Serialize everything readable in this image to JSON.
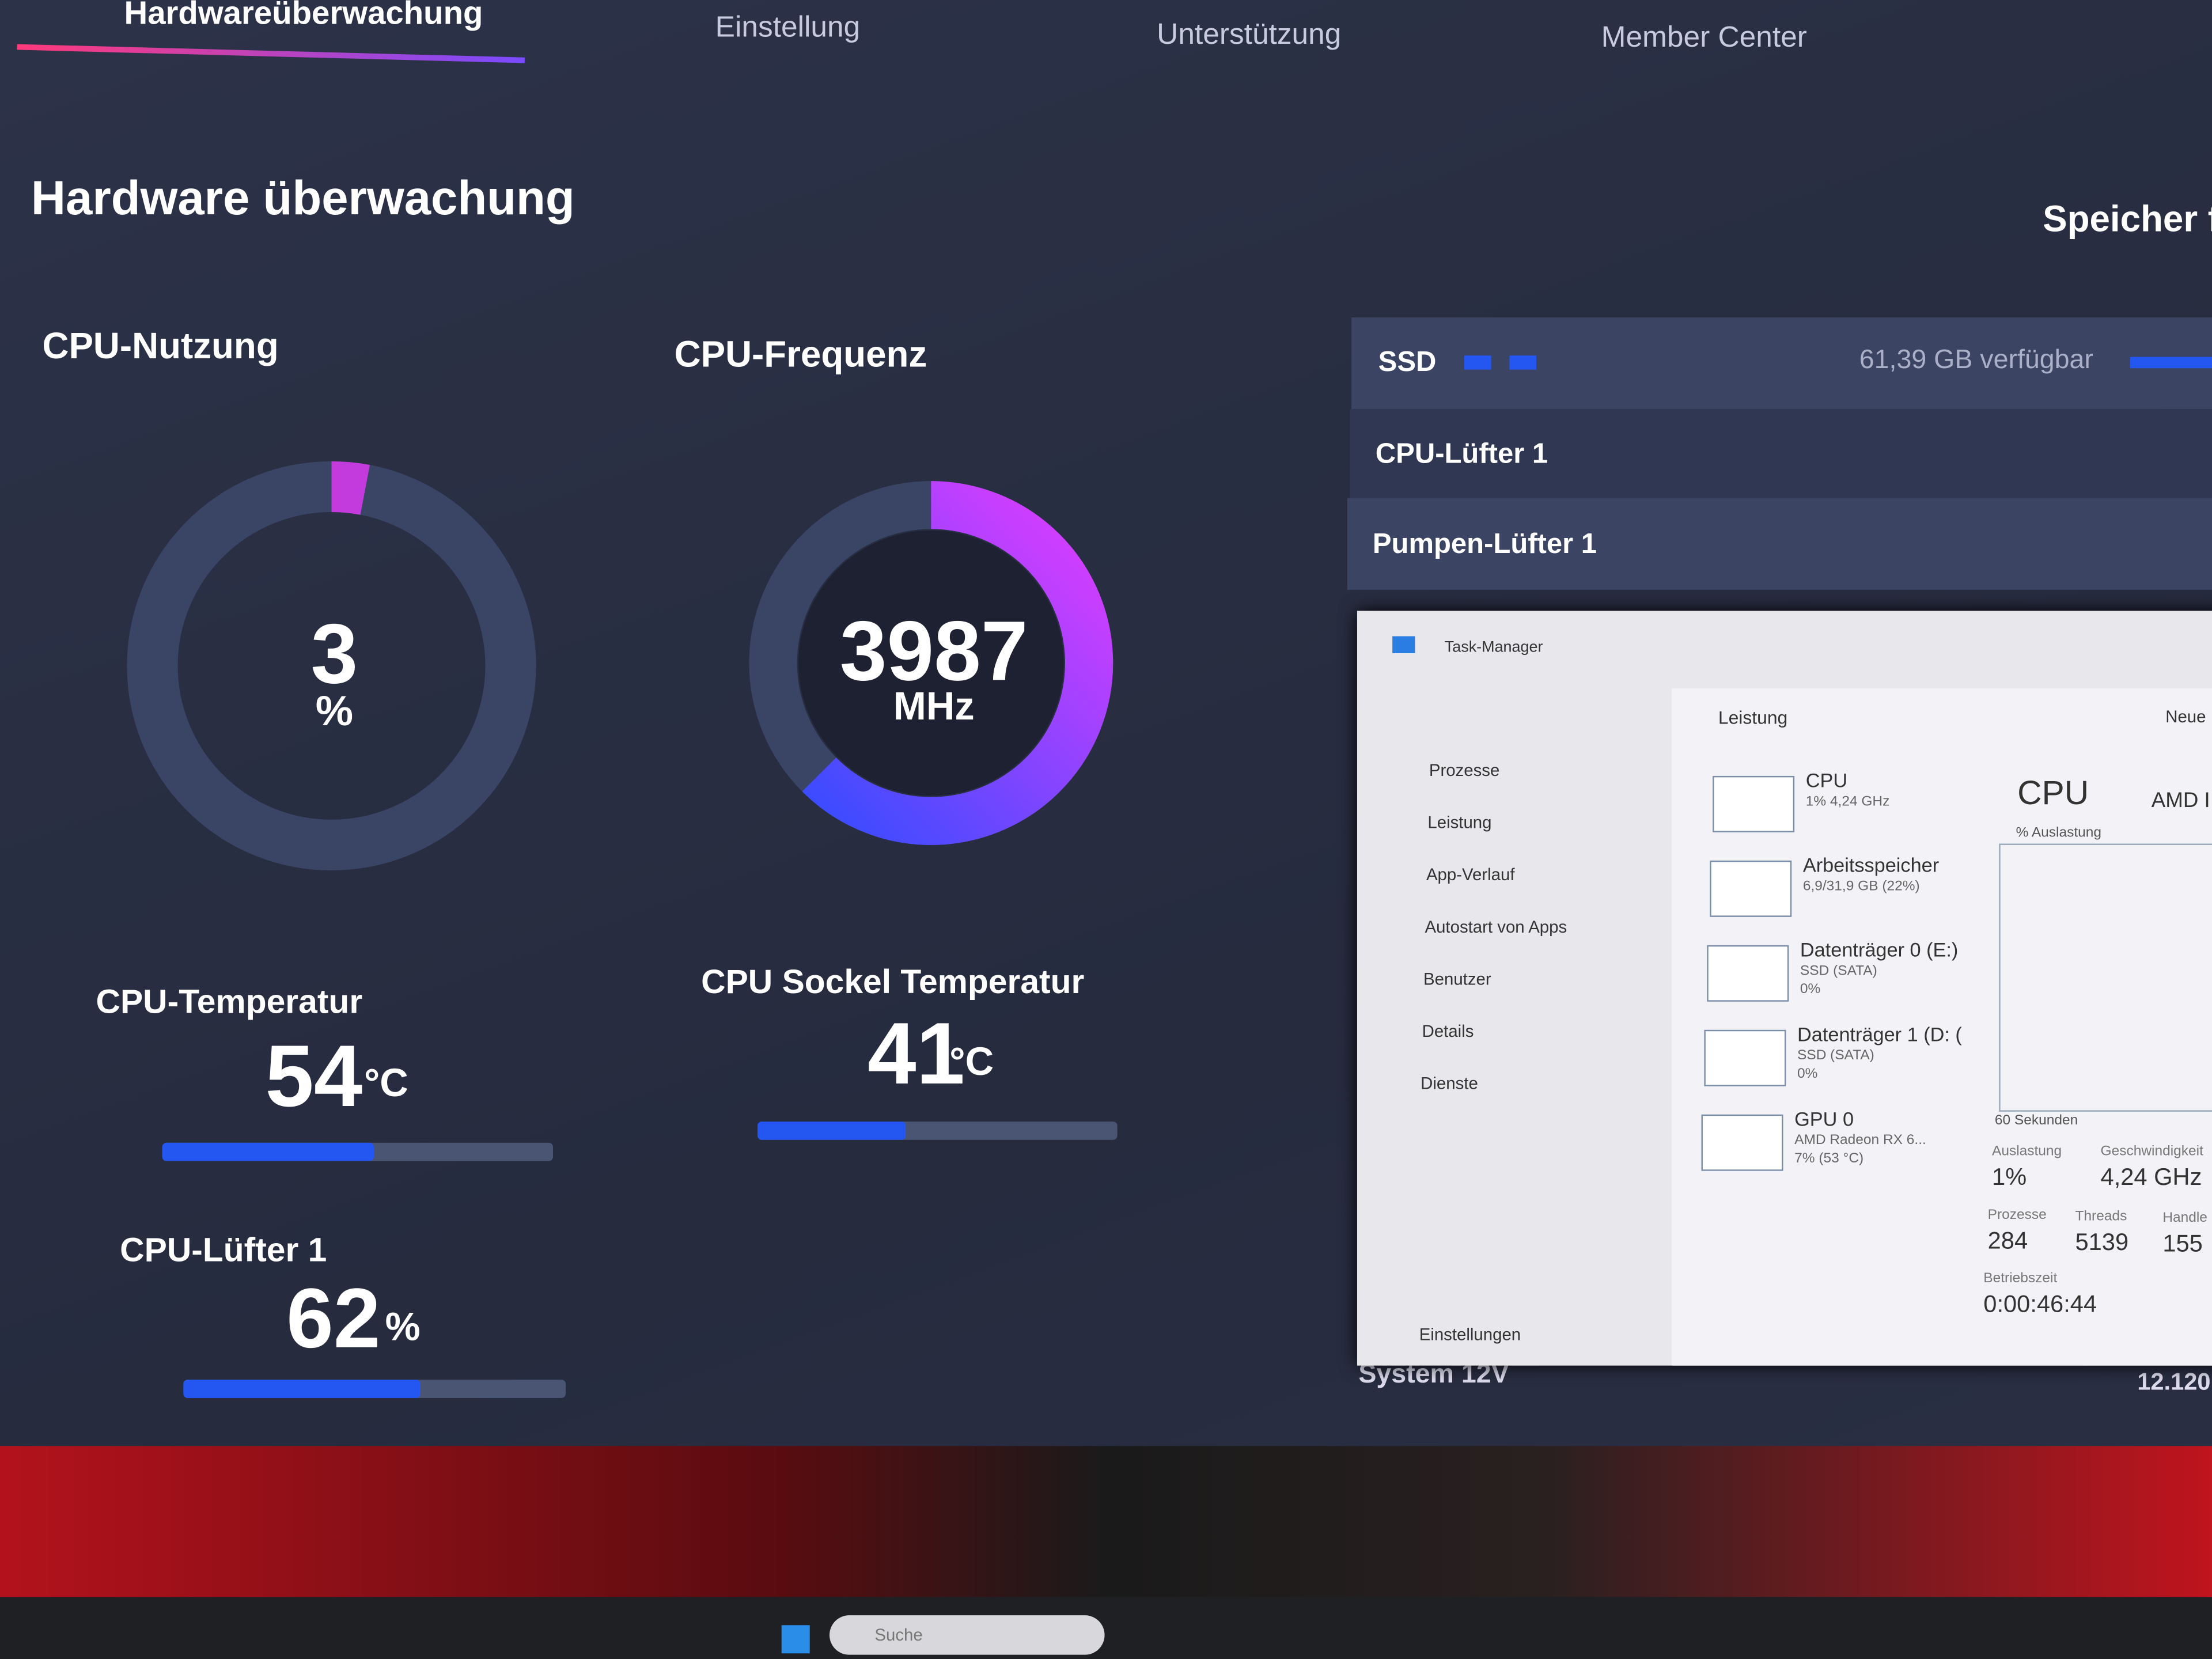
{
  "nav": [
    "Hardwareüberwachung",
    "Einstellung",
    "Unterstützung",
    "Member Center"
  ],
  "title": "Hardware überwachung",
  "right_title": "Speicher fi",
  "cpu_usage": {
    "label": "CPU-Nutzung",
    "value": 3,
    "unit": "%"
  },
  "cpu_freq": {
    "label": "CPU-Frequenz",
    "value": 3987,
    "unit": "MHz"
  },
  "cpu_temp": {
    "label": "CPU-Temperatur",
    "value": 54,
    "unit": "°C"
  },
  "socket_temp": {
    "label": "CPU Sockel Temperatur",
    "value": 41,
    "unit": "°C"
  },
  "cpu_fan": {
    "label": "CPU-Lüfter 1",
    "value": 62,
    "unit": "%"
  },
  "storage": {
    "ssd": "SSD",
    "ssd_free": "61,39 GB verfügbar",
    "rows": [
      "CPU-Lüfter 1",
      "Pumpen-Lüfter 1"
    ],
    "system": "System 12V",
    "system_value": "12.120"
  },
  "task_manager": {
    "title": "Task-Manager",
    "nav": [
      "Prozesse",
      "Leistung",
      "App-Verlauf",
      "Autostart von Apps",
      "Benutzer",
      "Details",
      "Dienste"
    ],
    "settings": "Einstellungen",
    "header": "Leistung",
    "new": "Neue",
    "items": [
      {
        "name": "CPU",
        "lines": [
          "1% 4,24 GHz"
        ]
      },
      {
        "name": "Arbeitsspeicher",
        "lines": [
          "6,9/31,9 GB (22%)"
        ]
      },
      {
        "name": "Datenträger 0 (E:)",
        "lines": [
          "SSD (SATA)",
          "0%"
        ]
      },
      {
        "name": "Datenträger 1 (D: (",
        "lines": [
          "SSD (SATA)",
          "0%"
        ]
      },
      {
        "name": "GPU 0",
        "lines": [
          "AMD Radeon RX 6...",
          "7% (53 °C)"
        ]
      }
    ],
    "detail": {
      "title": "CPU",
      "model": "AMD I",
      "axis": "% Auslastung",
      "time": "60 Sekunden",
      "stats": [
        {
          "label": "Auslastung",
          "value": "1%"
        },
        {
          "label": "Geschwindigkeit",
          "value": "4,24 GHz"
        },
        {
          "label": "Prozesse",
          "value": "284"
        },
        {
          "label": "Threads",
          "value": "5139"
        },
        {
          "label": "Handle",
          "value": "155"
        },
        {
          "label": "Betriebszeit",
          "value": "0:00:46:44"
        }
      ]
    }
  },
  "taskbar": {
    "search": "Suche"
  }
}
